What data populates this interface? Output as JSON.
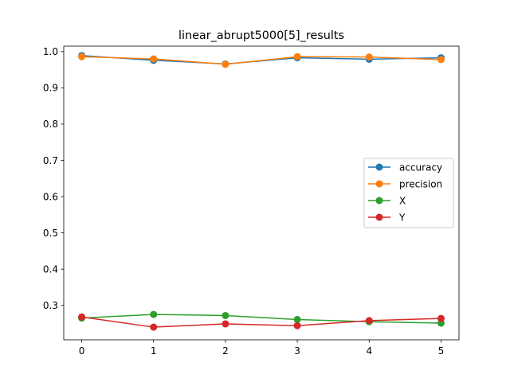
{
  "chart_data": {
    "type": "line",
    "title": "linear_abrupt5000[5]_results",
    "xlabel": "",
    "ylabel": "",
    "x": [
      0,
      1,
      2,
      3,
      4,
      5
    ],
    "xlim": [
      -0.25,
      5.25
    ],
    "ylim": [
      0.205,
      1.015
    ],
    "xticks": [
      0,
      1,
      2,
      3,
      4,
      5
    ],
    "yticks": [
      0.3,
      0.4,
      0.5,
      0.6,
      0.7,
      0.8,
      0.9,
      1.0
    ],
    "ytick_labels": [
      "0.3",
      "0.4",
      "0.5",
      "0.6",
      "0.7",
      "0.8",
      "0.9",
      "1.0"
    ],
    "xtick_labels": [
      "0",
      "1",
      "2",
      "3",
      "4",
      "5"
    ],
    "grid": false,
    "legend_position": "center-right",
    "series": [
      {
        "name": "accuracy",
        "color": "#1f77b4",
        "values": [
          0.989,
          0.976,
          0.966,
          0.983,
          0.979,
          0.983
        ]
      },
      {
        "name": "precision",
        "color": "#ff7f0e",
        "values": [
          0.986,
          0.98,
          0.965,
          0.986,
          0.985,
          0.978
        ]
      },
      {
        "name": "X",
        "color": "#2ca02c",
        "values": [
          0.265,
          0.275,
          0.272,
          0.261,
          0.255,
          0.251
        ]
      },
      {
        "name": "Y",
        "color": "#d62728",
        "values": [
          0.268,
          0.24,
          0.249,
          0.244,
          0.258,
          0.264
        ]
      }
    ]
  }
}
